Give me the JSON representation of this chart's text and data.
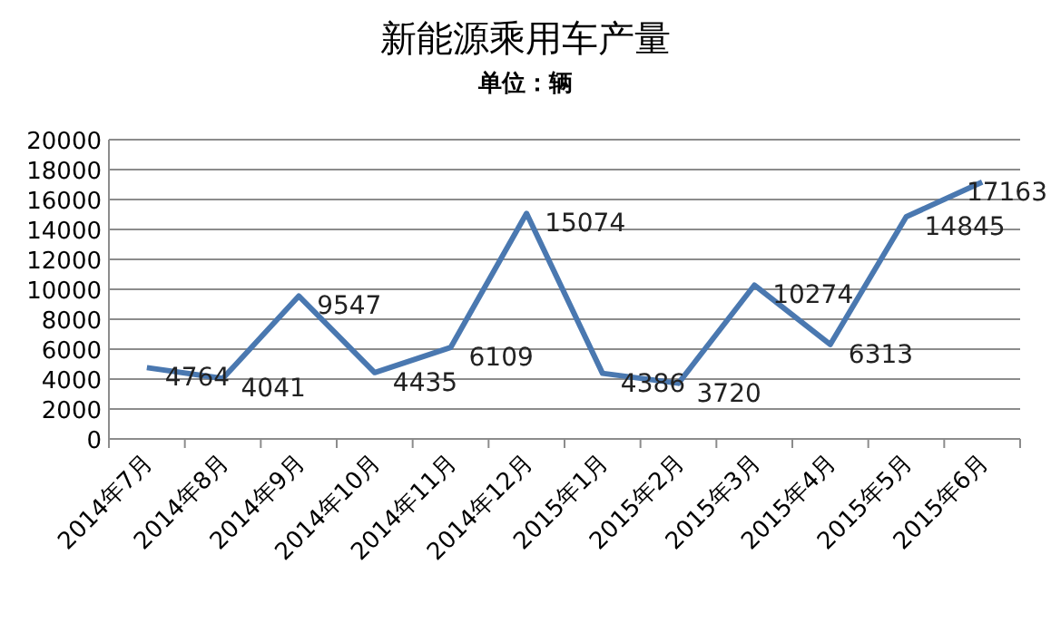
{
  "chart_data": {
    "type": "line",
    "title": "新能源乘用车产量",
    "subtitle": "单位：辆",
    "categories": [
      "2014年7月",
      "2014年8月",
      "2014年9月",
      "2014年10月",
      "2014年11月",
      "2014年12月",
      "2015年1月",
      "2015年2月",
      "2015年3月",
      "2015年4月",
      "2015年5月",
      "2015年6月"
    ],
    "series": [
      {
        "color": "#4a78b0",
        "values": [
          4764,
          4041,
          9547,
          4435,
          6109,
          15074,
          4386,
          3720,
          10274,
          6313,
          14845,
          17163
        ]
      }
    ],
    "ylim": [
      0,
      20000
    ],
    "yticks": [
      0,
      2000,
      4000,
      6000,
      8000,
      10000,
      12000,
      14000,
      16000,
      18000,
      20000
    ],
    "grid": "y",
    "data_labels": true
  }
}
